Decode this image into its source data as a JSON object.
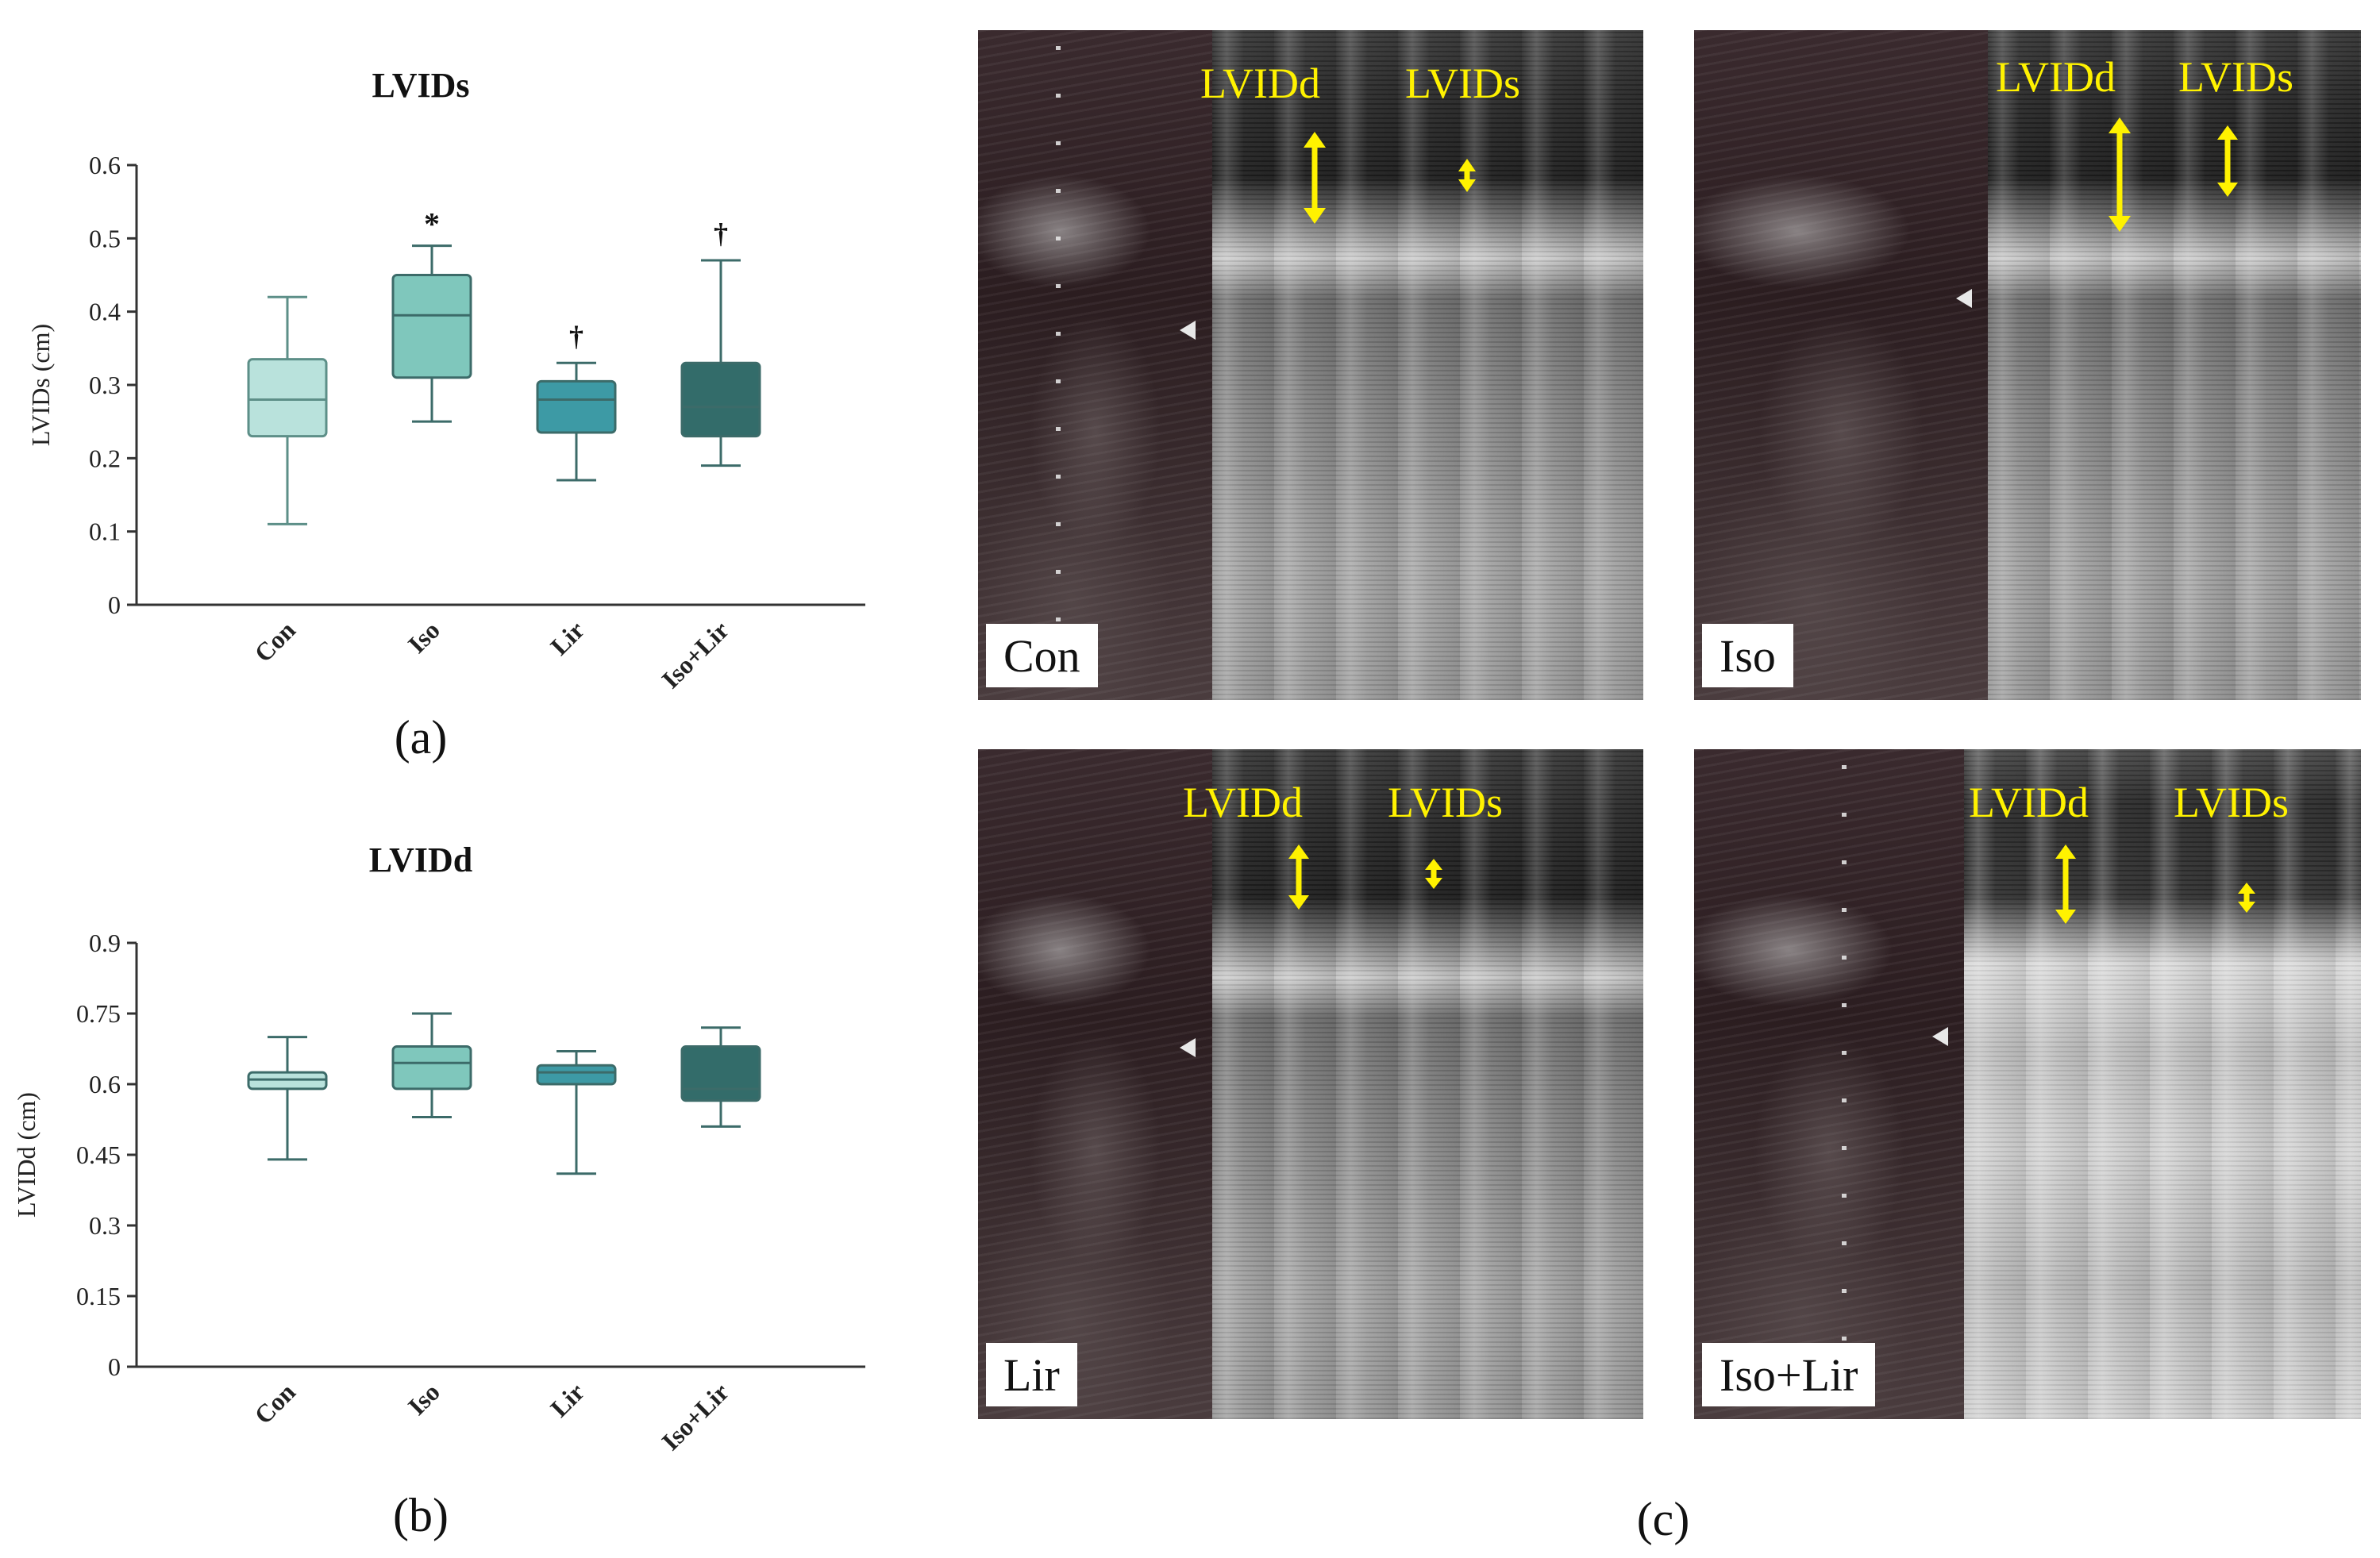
{
  "chart_data": [
    {
      "type": "box",
      "title": "LVIDs",
      "panel_label": "(a)",
      "ylabel": "LVIDs (cm)",
      "ylim": [
        0,
        0.6
      ],
      "yticks": [
        "0",
        "0.1",
        "0.2",
        "0.3",
        "0.4",
        "0.5",
        "0.6"
      ],
      "categories": [
        "Con",
        "Iso",
        "Lir",
        "Iso+Lir"
      ],
      "boxes": [
        {
          "min": 0.11,
          "q1": 0.23,
          "median": 0.28,
          "q3": 0.335,
          "max": 0.42,
          "annotation": "",
          "color": "#b9e2dc"
        },
        {
          "min": 0.25,
          "q1": 0.31,
          "median": 0.395,
          "q3": 0.45,
          "max": 0.49,
          "annotation": "*",
          "color": "#7fc7bc"
        },
        {
          "min": 0.17,
          "q1": 0.235,
          "median": 0.28,
          "q3": 0.305,
          "max": 0.33,
          "annotation": "†",
          "color": "#3d9aa5"
        },
        {
          "min": 0.19,
          "q1": 0.23,
          "median": 0.27,
          "q3": 0.33,
          "max": 0.47,
          "annotation": "†",
          "color": "#336c6a"
        }
      ],
      "grid": false
    },
    {
      "type": "box",
      "title": "LVIDd",
      "panel_label": "(b)",
      "ylabel": "LVIDd (cm)",
      "ylim": [
        0,
        0.9
      ],
      "yticks": [
        "0",
        "0.15",
        "0.3",
        "0.45",
        "0.6",
        "0.75",
        "0.9"
      ],
      "categories": [
        "Con",
        "Iso",
        "Lir",
        "Iso+Lir"
      ],
      "boxes": [
        {
          "min": 0.44,
          "q1": 0.59,
          "median": 0.61,
          "q3": 0.625,
          "max": 0.7,
          "annotation": "",
          "color": "#b9e2dc"
        },
        {
          "min": 0.53,
          "q1": 0.59,
          "median": 0.645,
          "q3": 0.68,
          "max": 0.75,
          "annotation": "",
          "color": "#7fc7bc"
        },
        {
          "min": 0.41,
          "q1": 0.6,
          "median": 0.625,
          "q3": 0.64,
          "max": 0.67,
          "annotation": "",
          "color": "#3d9aa5"
        },
        {
          "min": 0.51,
          "q1": 0.565,
          "median": 0.59,
          "q3": 0.68,
          "max": 0.72,
          "annotation": "",
          "color": "#336c6a"
        }
      ],
      "grid": false
    }
  ],
  "ultrasound": {
    "panel_label": "(c)",
    "panels": [
      {
        "tag": "Con",
        "label_d": "LVIDd",
        "label_s": "LVIDs"
      },
      {
        "tag": "Iso",
        "label_d": "LVIDd",
        "label_s": "LVIDs"
      },
      {
        "tag": "Lir",
        "label_d": "LVIDd",
        "label_s": "LVIDs"
      },
      {
        "tag": "Iso+Lir",
        "label_d": "LVIDd",
        "label_s": "LVIDs"
      }
    ],
    "arrow_color": "#fff200"
  }
}
